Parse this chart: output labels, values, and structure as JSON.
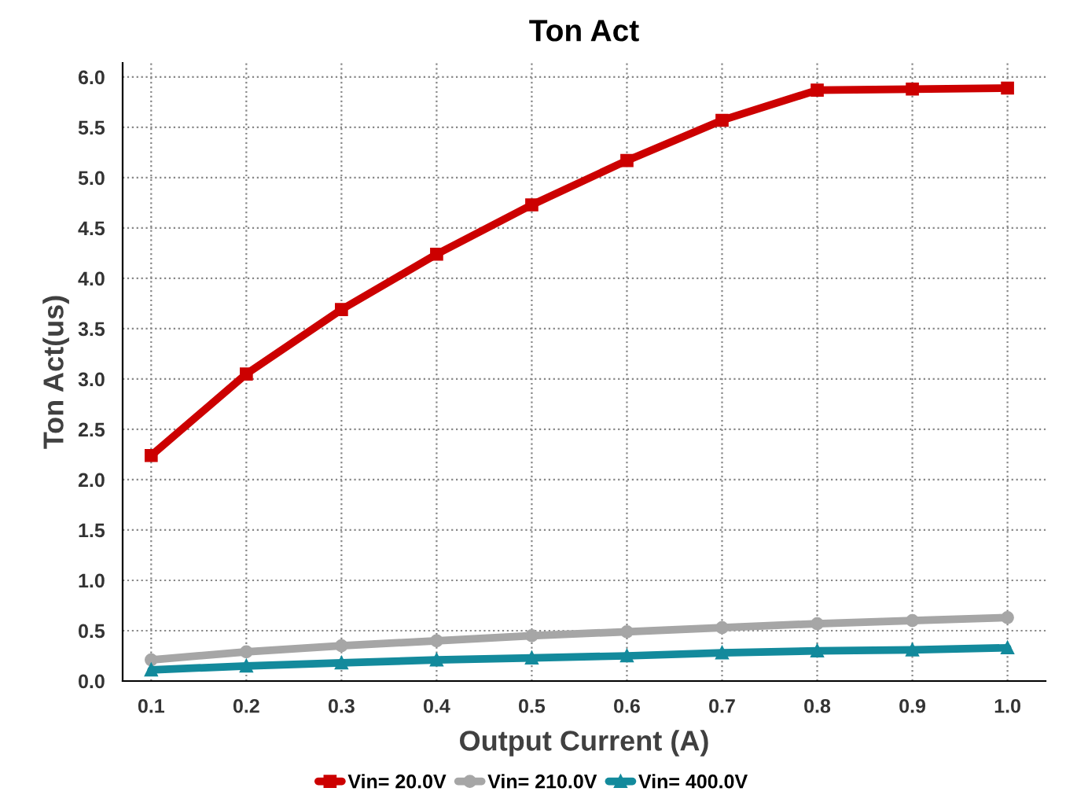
{
  "chart_data": {
    "type": "line",
    "title": "Ton Act",
    "xlabel": "Output Current (A)",
    "ylabel": "Ton Act(us)",
    "x": [
      0.1,
      0.2,
      0.3,
      0.4,
      0.5,
      0.6,
      0.7,
      0.8,
      0.9,
      1.0
    ],
    "series": [
      {
        "name": "Vin= 20.0V",
        "color": "#cc0000",
        "marker": "square",
        "values": [
          2.24,
          3.05,
          3.69,
          4.24,
          4.73,
          5.17,
          5.57,
          5.87,
          5.88,
          5.89
        ]
      },
      {
        "name": "Vin= 210.0V",
        "color": "#a6a6a6",
        "marker": "circle",
        "values": [
          0.21,
          0.29,
          0.35,
          0.4,
          0.45,
          0.49,
          0.53,
          0.57,
          0.6,
          0.63
        ]
      },
      {
        "name": "Vin= 400.0V",
        "color": "#138a9c",
        "marker": "triangle",
        "values": [
          0.11,
          0.15,
          0.18,
          0.21,
          0.23,
          0.25,
          0.28,
          0.3,
          0.31,
          0.33
        ]
      }
    ],
    "xlim": [
      0.07,
      1.04
    ],
    "xticks": [
      {
        "value": 0.1,
        "label": "0.1"
      },
      {
        "value": 0.2,
        "label": "0.2"
      },
      {
        "value": 0.3,
        "label": "0.3"
      },
      {
        "value": 0.4,
        "label": "0.4"
      },
      {
        "value": 0.5,
        "label": "0.5"
      },
      {
        "value": 0.6,
        "label": "0.6"
      },
      {
        "value": 0.7,
        "label": "0.7"
      },
      {
        "value": 0.8,
        "label": "0.8"
      },
      {
        "value": 0.9,
        "label": "0.9"
      },
      {
        "value": 1.0,
        "label": "1.0"
      }
    ],
    "ylim": [
      0,
      6.14
    ],
    "yticks": [
      {
        "value": 0,
        "label": "0.0"
      },
      {
        "value": 0.5,
        "label": "0.5"
      },
      {
        "value": 1,
        "label": "1.0"
      },
      {
        "value": 1.5,
        "label": "1.5"
      },
      {
        "value": 2,
        "label": "2.0"
      },
      {
        "value": 2.5,
        "label": "2.5"
      },
      {
        "value": 3,
        "label": "3.0"
      },
      {
        "value": 3.5,
        "label": "3.5"
      },
      {
        "value": 4,
        "label": "4.0"
      },
      {
        "value": 4.5,
        "label": "4.5"
      },
      {
        "value": 5,
        "label": "5.0"
      },
      {
        "value": 5.5,
        "label": "5.5"
      },
      {
        "value": 6,
        "label": "6.0"
      }
    ],
    "grid": true,
    "legend": "bottom",
    "line_style": "solid"
  }
}
